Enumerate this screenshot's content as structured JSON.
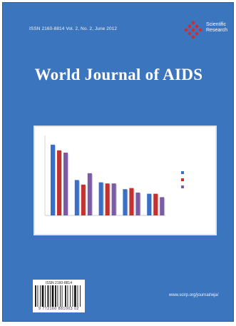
{
  "journal": {
    "issn_line": "ISSN 2160-8814   Vol. 2, No. 2, June 2012",
    "publisher_name_line1": "Scientific",
    "publisher_name_line2": "Research",
    "title": "World Journal of AIDS",
    "url": "www.scirp.org/journal/wja/"
  },
  "barcode": {
    "issn": "ISSN 2160-8814",
    "number": "9 772160 881003   02"
  },
  "colors": {
    "cover_background": "#3b75be",
    "publisher_red": "#d42a2a",
    "series": [
      "#3a6fc6",
      "#c23330",
      "#7c5aa6"
    ]
  },
  "chart_data": {
    "type": "bar",
    "categories": [
      "",
      "",
      "",
      "",
      ""
    ],
    "series": [
      {
        "values": [
          62,
          31,
          29,
          23,
          19
        ]
      },
      {
        "values": [
          57,
          27,
          28,
          24,
          19
        ]
      },
      {
        "values": [
          55,
          37,
          28,
          20,
          16
        ]
      }
    ],
    "ylim": [
      0,
      70
    ],
    "legend_position": "right"
  }
}
